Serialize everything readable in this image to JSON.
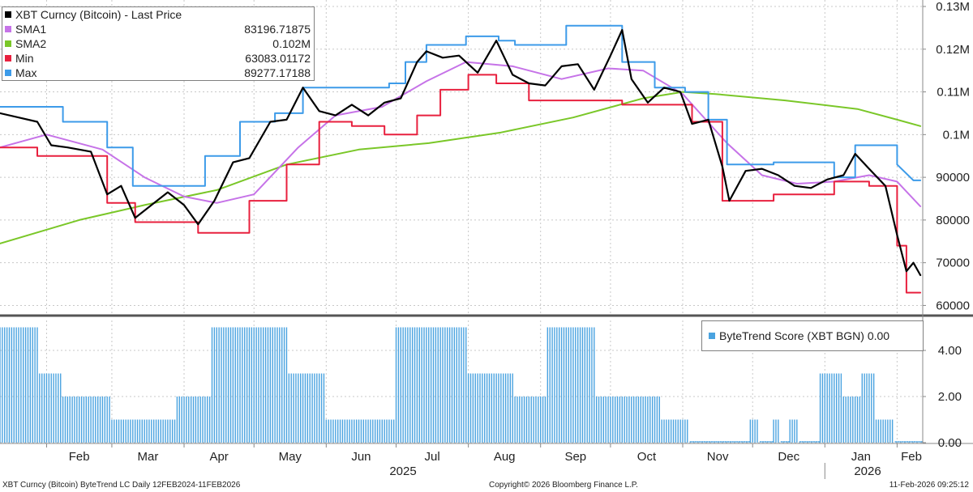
{
  "colors": {
    "price": "#000000",
    "sma1": "#c673e8",
    "sma2": "#7ac728",
    "min": "#e8203e",
    "max": "#3d9be9",
    "score": "#4aa3e0",
    "grid": "#c8c8c8"
  },
  "legend": {
    "title": "XBT Curncy (Bitcoin) - Last Price",
    "items": [
      {
        "name": "SMA1",
        "value": "83196.71875",
        "color_key": "sma1"
      },
      {
        "name": "SMA2",
        "value": "0.102M",
        "color_key": "sma2"
      },
      {
        "name": "Min",
        "value": "63083.01172",
        "color_key": "min"
      },
      {
        "name": "Max",
        "value": "89277.17188",
        "color_key": "max"
      }
    ]
  },
  "score_legend": {
    "label": "ByteTrend Score (XBT BGN) 0.00"
  },
  "footer": {
    "left": "XBT Curncy (Bitcoin) ByteTrend LC Daily 12FEB2024-11FEB2026",
    "center": "Copyright© 2026 Bloomberg Finance L.P.",
    "right": "11-Feb-2026 09:25:12"
  },
  "chart_data": [
    {
      "type": "line",
      "ylim": [
        58000,
        130000
      ],
      "yticks": [
        "0.13M",
        "0.12M",
        "0.11M",
        "0.1M",
        "90000",
        "80000",
        "70000",
        "60000"
      ],
      "ytick_values": [
        130000,
        120000,
        110000,
        100000,
        90000,
        80000,
        70000,
        60000
      ],
      "xtick_labels": [
        "Feb",
        "Mar",
        "Apr",
        "May",
        "Jun",
        "Jul",
        "Aug",
        "Sep",
        "Oct",
        "Nov",
        "Dec",
        "Jan",
        "Feb"
      ],
      "year_labels": [
        "2025",
        "2026"
      ],
      "grid": true,
      "legend_position": "top-left",
      "series": [
        {
          "name": "XBT Curncy (Bitcoin) - Last Price",
          "color_key": "price",
          "x": [
            "2025-01-12",
            "2025-01-20",
            "2025-01-28",
            "2025-02-03",
            "2025-02-10",
            "2025-02-20",
            "2025-02-27",
            "2025-03-05",
            "2025-03-11",
            "2025-03-18",
            "2025-03-25",
            "2025-04-01",
            "2025-04-07",
            "2025-04-14",
            "2025-04-22",
            "2025-04-29",
            "2025-05-08",
            "2025-05-15",
            "2025-05-22",
            "2025-05-29",
            "2025-06-05",
            "2025-06-12",
            "2025-06-19",
            "2025-06-26",
            "2025-07-03",
            "2025-07-10",
            "2025-07-14",
            "2025-07-21",
            "2025-07-28",
            "2025-08-05",
            "2025-08-13",
            "2025-08-20",
            "2025-08-27",
            "2025-09-03",
            "2025-09-10",
            "2025-09-17",
            "2025-09-24",
            "2025-10-01",
            "2025-10-06",
            "2025-10-10",
            "2025-10-17",
            "2025-10-24",
            "2025-10-31",
            "2025-11-05",
            "2025-11-12",
            "2025-11-18",
            "2025-11-21",
            "2025-11-28",
            "2025-12-05",
            "2025-12-12",
            "2025-12-19",
            "2025-12-26",
            "2026-01-02",
            "2026-01-09",
            "2026-01-14",
            "2026-01-20",
            "2026-01-27",
            "2026-02-01",
            "2026-02-05",
            "2026-02-08",
            "2026-02-11"
          ],
          "values": [
            105000,
            104000,
            103000,
            97500,
            97000,
            96000,
            86000,
            88000,
            80500,
            83500,
            86500,
            83500,
            79000,
            84500,
            93500,
            94500,
            103000,
            103500,
            111000,
            105500,
            104500,
            107000,
            104500,
            107500,
            108500,
            117000,
            119500,
            118000,
            118500,
            114500,
            122000,
            114000,
            112000,
            111500,
            116000,
            116500,
            110500,
            118500,
            124500,
            113000,
            107500,
            111000,
            110000,
            102500,
            103500,
            92500,
            84500,
            91500,
            92000,
            90500,
            88000,
            87500,
            89500,
            90500,
            95500,
            92000,
            88000,
            76500,
            68000,
            70000,
            67100
          ]
        },
        {
          "name": "SMA1",
          "color_key": "sma1",
          "x": [
            "2025-01-12",
            "2025-02-01",
            "2025-02-25",
            "2025-03-15",
            "2025-04-01",
            "2025-04-15",
            "2025-05-01",
            "2025-05-20",
            "2025-06-05",
            "2025-06-25",
            "2025-07-14",
            "2025-07-31",
            "2025-08-20",
            "2025-09-10",
            "2025-09-30",
            "2025-10-15",
            "2025-11-01",
            "2025-11-20",
            "2025-12-05",
            "2025-12-20",
            "2026-01-05",
            "2026-01-20",
            "2026-02-01",
            "2026-02-11"
          ],
          "values": [
            97000,
            100000,
            96500,
            90000,
            85500,
            84000,
            86000,
            97000,
            104500,
            106500,
            112500,
            117000,
            116000,
            113000,
            115500,
            115000,
            109500,
            98000,
            90500,
            88500,
            89000,
            90500,
            89000,
            83200
          ]
        },
        {
          "name": "SMA2",
          "color_key": "sma2",
          "x": [
            "2025-01-12",
            "2025-02-15",
            "2025-03-15",
            "2025-04-15",
            "2025-05-15",
            "2025-06-15",
            "2025-07-15",
            "2025-08-15",
            "2025-09-15",
            "2025-10-15",
            "2025-11-01",
            "2025-11-15",
            "2025-12-15",
            "2026-01-15",
            "2026-02-01",
            "2026-02-11"
          ],
          "values": [
            74500,
            80000,
            83500,
            87000,
            93000,
            96500,
            98000,
            100500,
            104000,
            108500,
            110000,
            109500,
            108000,
            106000,
            103500,
            102000
          ]
        },
        {
          "name": "Min",
          "color_key": "min",
          "x": [
            "2025-01-12",
            "2025-01-28",
            "2025-01-28",
            "2025-02-27",
            "2025-02-27",
            "2025-03-11",
            "2025-03-11",
            "2025-04-07",
            "2025-04-07",
            "2025-04-29",
            "2025-04-29",
            "2025-05-15",
            "2025-05-15",
            "2025-05-29",
            "2025-05-29",
            "2025-06-12",
            "2025-06-12",
            "2025-06-26",
            "2025-06-26",
            "2025-07-10",
            "2025-07-10",
            "2025-07-20",
            "2025-07-20",
            "2025-08-01",
            "2025-08-01",
            "2025-08-13",
            "2025-08-13",
            "2025-08-27",
            "2025-08-27",
            "2025-10-06",
            "2025-10-06",
            "2025-11-05",
            "2025-11-05",
            "2025-11-18",
            "2025-11-18",
            "2025-12-10",
            "2025-12-10",
            "2026-01-05",
            "2026-01-05",
            "2026-01-20",
            "2026-01-20",
            "2026-02-01",
            "2026-02-01",
            "2026-02-05",
            "2026-02-05",
            "2026-02-11"
          ],
          "values": [
            97000,
            97000,
            95000,
            95000,
            84000,
            84000,
            79500,
            79500,
            77000,
            77000,
            84500,
            84500,
            93000,
            93000,
            103000,
            103000,
            102000,
            102000,
            100000,
            100000,
            104500,
            104500,
            110500,
            110500,
            114000,
            114000,
            112000,
            112000,
            108000,
            108000,
            107000,
            107000,
            103000,
            103000,
            84500,
            84500,
            86000,
            86000,
            89000,
            89000,
            88000,
            88000,
            74000,
            74000,
            63000,
            63000
          ]
        },
        {
          "name": "Max",
          "color_key": "max",
          "x": [
            "2025-01-12",
            "2025-02-08",
            "2025-02-08",
            "2025-02-27",
            "2025-02-27",
            "2025-03-10",
            "2025-03-10",
            "2025-04-10",
            "2025-04-10",
            "2025-04-25",
            "2025-04-25",
            "2025-05-10",
            "2025-05-10",
            "2025-05-22",
            "2025-05-22",
            "2025-06-12",
            "2025-06-12",
            "2025-06-28",
            "2025-06-28",
            "2025-07-05",
            "2025-07-05",
            "2025-07-14",
            "2025-07-14",
            "2025-07-31",
            "2025-07-31",
            "2025-08-14",
            "2025-08-14",
            "2025-08-21",
            "2025-08-21",
            "2025-09-12",
            "2025-09-12",
            "2025-10-06",
            "2025-10-06",
            "2025-10-20",
            "2025-10-20",
            "2025-11-02",
            "2025-11-02",
            "2025-11-12",
            "2025-11-12",
            "2025-11-20",
            "2025-11-20",
            "2025-12-10",
            "2025-12-10",
            "2026-01-05",
            "2026-01-05",
            "2026-01-14",
            "2026-01-14",
            "2026-02-01",
            "2026-02-01",
            "2026-02-08",
            "2026-02-11"
          ],
          "values": [
            106500,
            106500,
            103000,
            103000,
            97000,
            97000,
            88000,
            88000,
            95000,
            95000,
            103000,
            103000,
            105000,
            105000,
            111000,
            111000,
            111000,
            111000,
            112000,
            112000,
            117000,
            117000,
            121000,
            121000,
            123000,
            123000,
            122000,
            122000,
            121000,
            121000,
            125500,
            125500,
            117000,
            117000,
            111000,
            111000,
            110000,
            110000,
            103500,
            103500,
            93000,
            93000,
            93500,
            93500,
            90000,
            90000,
            97500,
            97500,
            93000,
            89277,
            89277
          ]
        }
      ]
    },
    {
      "type": "bar",
      "name": "ByteTrend Score (XBT BGN)",
      "ylim": [
        0,
        5.3
      ],
      "yticks": [
        "4.00",
        "2.00",
        "0.00"
      ],
      "ytick_values": [
        4,
        2,
        0
      ],
      "legend_position": "top-right",
      "segments": [
        {
          "start": "2025-01-12",
          "end": "2025-01-28",
          "value": 5
        },
        {
          "start": "2025-01-29",
          "end": "2025-02-07",
          "value": 3
        },
        {
          "start": "2025-02-08",
          "end": "2025-02-28",
          "value": 2
        },
        {
          "start": "2025-03-01",
          "end": "2025-03-28",
          "value": 1
        },
        {
          "start": "2025-03-29",
          "end": "2025-04-12",
          "value": 2
        },
        {
          "start": "2025-04-13",
          "end": "2025-05-15",
          "value": 5
        },
        {
          "start": "2025-05-16",
          "end": "2025-05-31",
          "value": 3
        },
        {
          "start": "2025-06-01",
          "end": "2025-06-30",
          "value": 1
        },
        {
          "start": "2025-07-01",
          "end": "2025-07-31",
          "value": 5
        },
        {
          "start": "2025-08-01",
          "end": "2025-08-20",
          "value": 3
        },
        {
          "start": "2025-08-21",
          "end": "2025-09-03",
          "value": 2
        },
        {
          "start": "2025-09-04",
          "end": "2025-09-24",
          "value": 5
        },
        {
          "start": "2025-09-25",
          "end": "2025-10-22",
          "value": 2
        },
        {
          "start": "2025-10-23",
          "end": "2025-11-03",
          "value": 1
        },
        {
          "start": "2025-11-04",
          "end": "2025-11-29",
          "value": 0
        },
        {
          "start": "2025-11-30",
          "end": "2025-12-03",
          "value": 1
        },
        {
          "start": "2025-12-04",
          "end": "2025-12-09",
          "value": 0
        },
        {
          "start": "2025-12-10",
          "end": "2025-12-12",
          "value": 1
        },
        {
          "start": "2025-12-13",
          "end": "2025-12-16",
          "value": 0
        },
        {
          "start": "2025-12-17",
          "end": "2025-12-20",
          "value": 1
        },
        {
          "start": "2025-12-21",
          "end": "2025-12-29",
          "value": 0
        },
        {
          "start": "2025-12-30",
          "end": "2026-01-08",
          "value": 3
        },
        {
          "start": "2026-01-09",
          "end": "2026-01-16",
          "value": 2
        },
        {
          "start": "2026-01-17",
          "end": "2026-01-22",
          "value": 3
        },
        {
          "start": "2026-01-23",
          "end": "2026-01-30",
          "value": 1
        },
        {
          "start": "2026-01-31",
          "end": "2026-02-11",
          "value": 0
        }
      ]
    }
  ]
}
